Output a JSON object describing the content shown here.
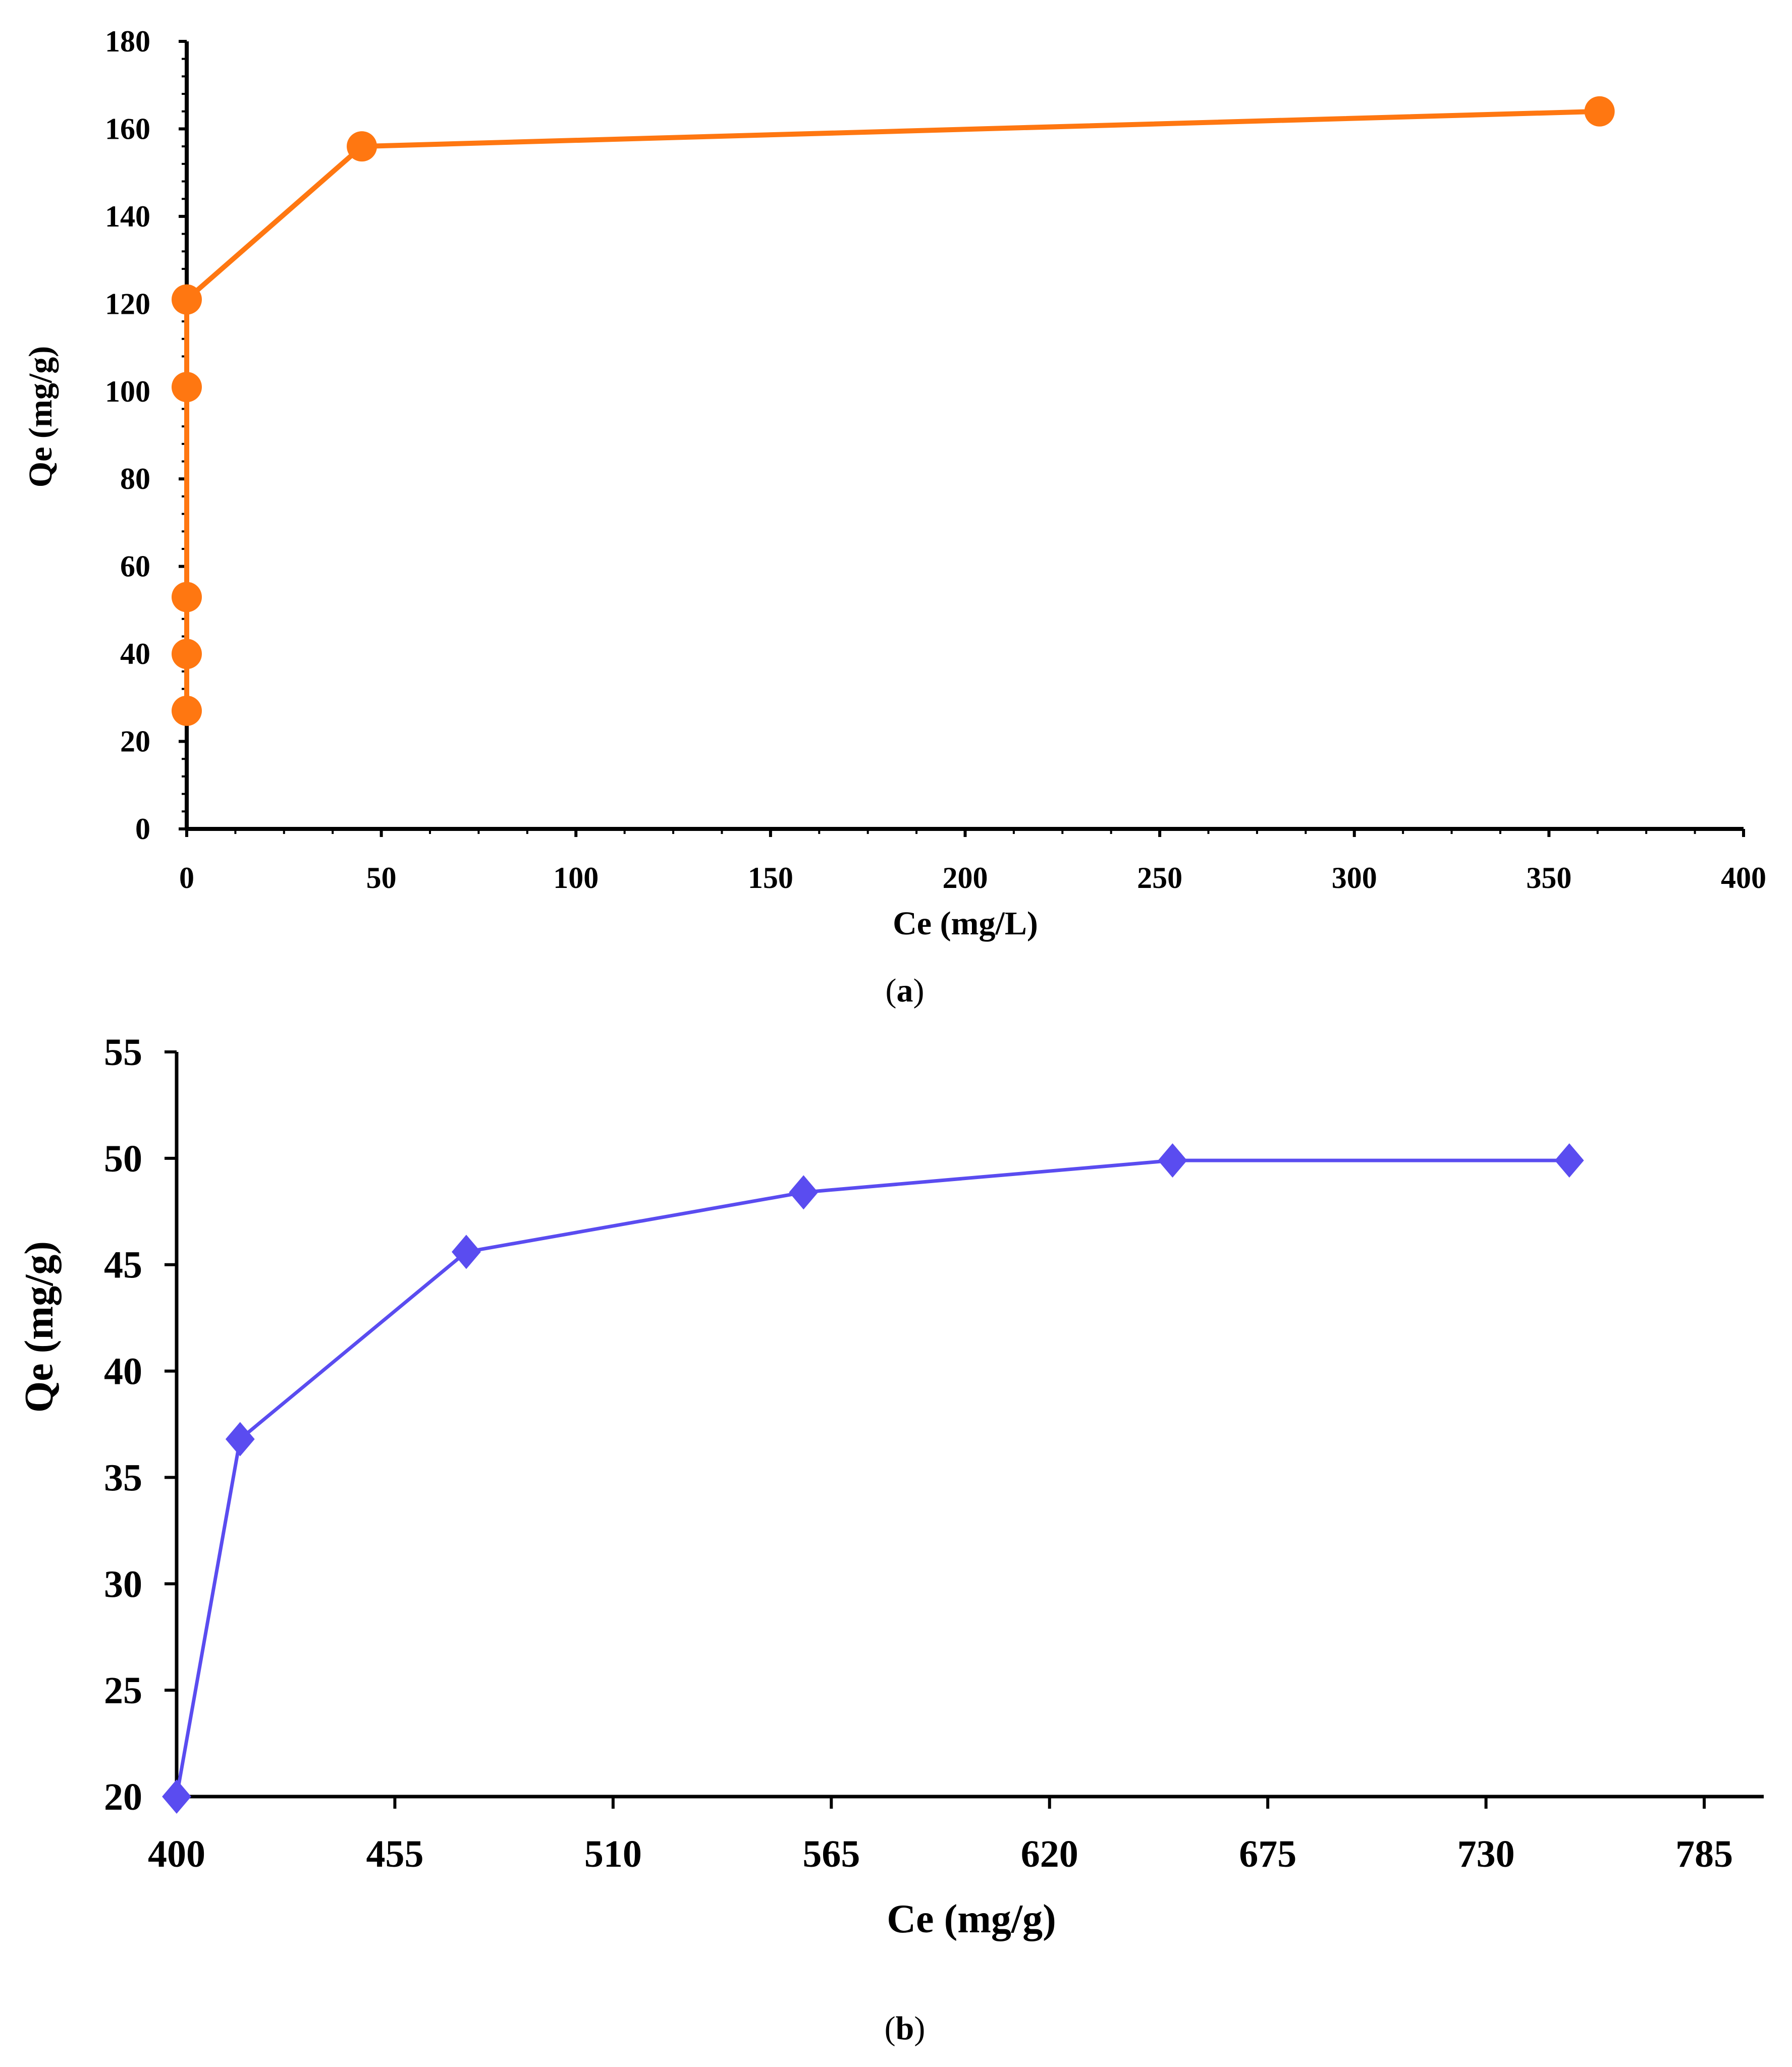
{
  "chart_data": [
    {
      "type": "line",
      "marker": "circle",
      "color": "#ff7711",
      "xlabel": "Ce (mg/L)",
      "ylabel": "Qe (mg/g)",
      "xlim": [
        0,
        400
      ],
      "ylim": [
        0,
        180
      ],
      "xticks": [
        0,
        50,
        100,
        150,
        200,
        250,
        300,
        350,
        400
      ],
      "yticks": [
        0,
        20,
        40,
        60,
        80,
        100,
        120,
        140,
        160,
        180
      ],
      "x": [
        0,
        0,
        0,
        0,
        0,
        45,
        363
      ],
      "y": [
        27,
        40,
        53,
        101,
        121,
        156,
        164
      ],
      "caption_open": "(",
      "caption_letter": "a",
      "caption_close": ")"
    },
    {
      "type": "line",
      "marker": "diamond",
      "color": "#5a4cf0",
      "xlabel": "Ce (mg/g)",
      "ylabel": "Qe (mg/g)",
      "xlim": [
        400,
        800
      ],
      "ylim": [
        20,
        55
      ],
      "xticks": [
        400,
        455,
        510,
        565,
        620,
        675,
        730,
        785
      ],
      "yticks": [
        20,
        25,
        30,
        35,
        40,
        45,
        50,
        55
      ],
      "x": [
        400,
        416,
        473,
        558,
        651,
        751
      ],
      "y": [
        20,
        36.8,
        45.6,
        48.4,
        49.9,
        49.9
      ],
      "caption_open": "(",
      "caption_letter": "b",
      "caption_close": ")"
    }
  ]
}
